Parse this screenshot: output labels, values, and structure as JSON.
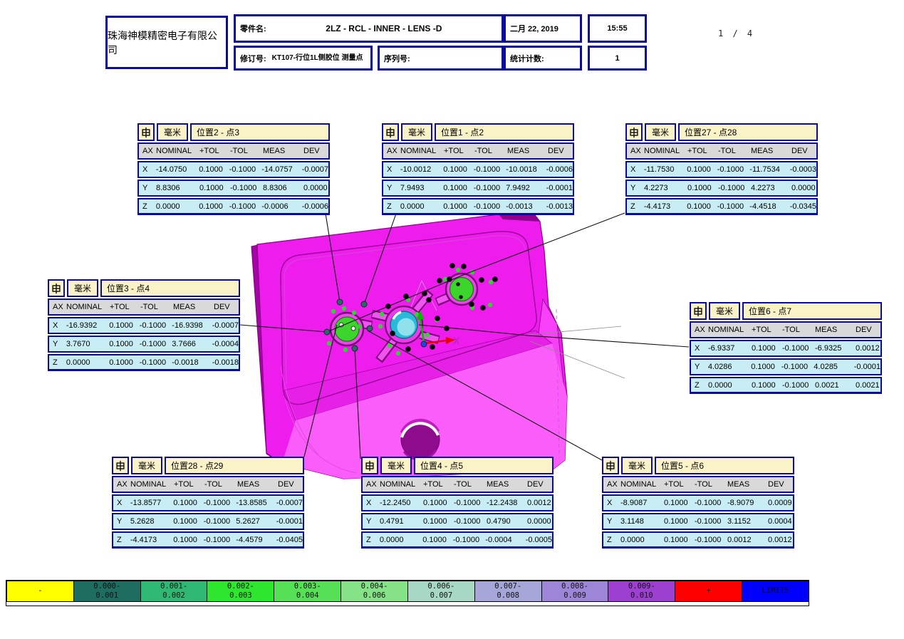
{
  "page": {
    "number_label": "1 / 4"
  },
  "header": {
    "company": "珠海神模精密电子有限公司",
    "part_label": "零件名:",
    "part_value": "2LZ - RCL - INNER - LENS -D",
    "date": "二月 22, 2019",
    "time": "15:55",
    "revision_label": "修订号:",
    "revision_value": "KT107-行位1L侧胶位 测量点",
    "serial_label": "序列号:",
    "serial_value": "",
    "stats_label": "统计计数:",
    "stats_value": "1"
  },
  "dimension_tables": {
    "unit": "毫米",
    "columns": [
      "AX",
      "NOMINAL",
      "+TOL",
      "-TOL",
      "MEAS",
      "DEV"
    ],
    "tables": [
      {
        "title": "位置2 - 点3",
        "rows": [
          [
            "X",
            "-14.0750",
            "0.1000",
            "-0.1000",
            "-14.0757",
            "-0.0007"
          ],
          [
            "Y",
            "8.8306",
            "0.1000",
            "-0.1000",
            "8.8306",
            "0.0000"
          ],
          [
            "Z",
            "0.0000",
            "0.1000",
            "-0.1000",
            "-0.0006",
            "-0.0006"
          ]
        ]
      },
      {
        "title": "位置1 - 点2",
        "rows": [
          [
            "X",
            "-10.0012",
            "0.1000",
            "-0.1000",
            "-10.0018",
            "-0.0006"
          ],
          [
            "Y",
            "7.9493",
            "0.1000",
            "-0.1000",
            "7.9492",
            "-0.0001"
          ],
          [
            "Z",
            "0.0000",
            "0.1000",
            "-0.1000",
            "-0.0013",
            "-0.0013"
          ]
        ]
      },
      {
        "title": "位置27 - 点28",
        "rows": [
          [
            "X",
            "-11.7530",
            "0.1000",
            "-0.1000",
            "-11.7534",
            "-0.0003"
          ],
          [
            "Y",
            "4.2273",
            "0.1000",
            "-0.1000",
            "4.2273",
            "0.0000"
          ],
          [
            "Z",
            "-4.4173",
            "0.1000",
            "-0.1000",
            "-4.4518",
            "-0.0345"
          ]
        ]
      },
      {
        "title": "位置3 - 点4",
        "rows": [
          [
            "X",
            "-16.9392",
            "0.1000",
            "-0.1000",
            "-16.9398",
            "-0.0007"
          ],
          [
            "Y",
            "3.7670",
            "0.1000",
            "-0.1000",
            "3.7666",
            "-0.0004"
          ],
          [
            "Z",
            "0.0000",
            "0.1000",
            "-0.1000",
            "-0.0018",
            "-0.0018"
          ]
        ]
      },
      {
        "title": "位置6 - 点7",
        "rows": [
          [
            "X",
            "-6.9337",
            "0.1000",
            "-0.1000",
            "-6.9325",
            "0.0012"
          ],
          [
            "Y",
            "4.0286",
            "0.1000",
            "-0.1000",
            "4.0285",
            "-0.0001"
          ],
          [
            "Z",
            "0.0000",
            "0.1000",
            "-0.1000",
            "0.0021",
            "0.0021"
          ]
        ]
      },
      {
        "title": "位置28 - 点29",
        "rows": [
          [
            "X",
            "-13.8577",
            "0.1000",
            "-0.1000",
            "-13.8585",
            "-0.0007"
          ],
          [
            "Y",
            "5.2628",
            "0.1000",
            "-0.1000",
            "5.2627",
            "-0.0001"
          ],
          [
            "Z",
            "-4.4173",
            "0.1000",
            "-0.1000",
            "-4.4579",
            "-0.0405"
          ]
        ]
      },
      {
        "title": "位置4 - 点5",
        "rows": [
          [
            "X",
            "-12.2450",
            "0.1000",
            "-0.1000",
            "-12.2438",
            "0.0012"
          ],
          [
            "Y",
            "0.4791",
            "0.1000",
            "-0.1000",
            "0.4790",
            "0.0000"
          ],
          [
            "Z",
            "0.0000",
            "0.1000",
            "-0.1000",
            "-0.0004",
            "-0.0005"
          ]
        ]
      },
      {
        "title": "位置5 - 点6",
        "rows": [
          [
            "X",
            "-8.9087",
            "0.1000",
            "-0.1000",
            "-8.9079",
            "0.0009"
          ],
          [
            "Y",
            "3.1148",
            "0.1000",
            "-0.1000",
            "3.1152",
            "0.0004"
          ],
          [
            "Z",
            "0.0000",
            "0.1000",
            "-0.1000",
            "0.0012",
            "0.0012"
          ]
        ]
      }
    ]
  },
  "legend": {
    "cells": [
      {
        "label": "-",
        "color": "#ffff00"
      },
      {
        "label": "0.000-\n0.001",
        "color": "#1d6d60"
      },
      {
        "label": "0.001-\n0.002",
        "color": "#2fb873"
      },
      {
        "label": "0.002-\n0.003",
        "color": "#2ee62e"
      },
      {
        "label": "0.003-\n0.004",
        "color": "#55e055"
      },
      {
        "label": "0.004-\n0.006",
        "color": "#86e286"
      },
      {
        "label": "0.006-\n0.007",
        "color": "#a7d8c4"
      },
      {
        "label": "0.007-\n0.008",
        "color": "#a6a6d8"
      },
      {
        "label": "0.008-\n0.009",
        "color": "#9d86d8"
      },
      {
        "label": "0.009-\n0.010",
        "color": "#9d3fd0"
      },
      {
        "label": "+",
        "color": "#ff0000"
      },
      {
        "label": "LIMITS",
        "color": "#0000ff"
      }
    ]
  },
  "model": {
    "axis_x_label": "X"
  },
  "colors": {
    "table_border": "#0b0b9b",
    "title_bg": "#fbf3c8",
    "header_bg": "#d9d9d9",
    "data_bg": "#c9edf4",
    "body_magenta": "#ee1dee",
    "lower_magenta": "#fa5dfa",
    "side_magenta": "#a405a4",
    "feature_green": "#3bd52b",
    "lens_cyan": "#2ab9d8"
  }
}
